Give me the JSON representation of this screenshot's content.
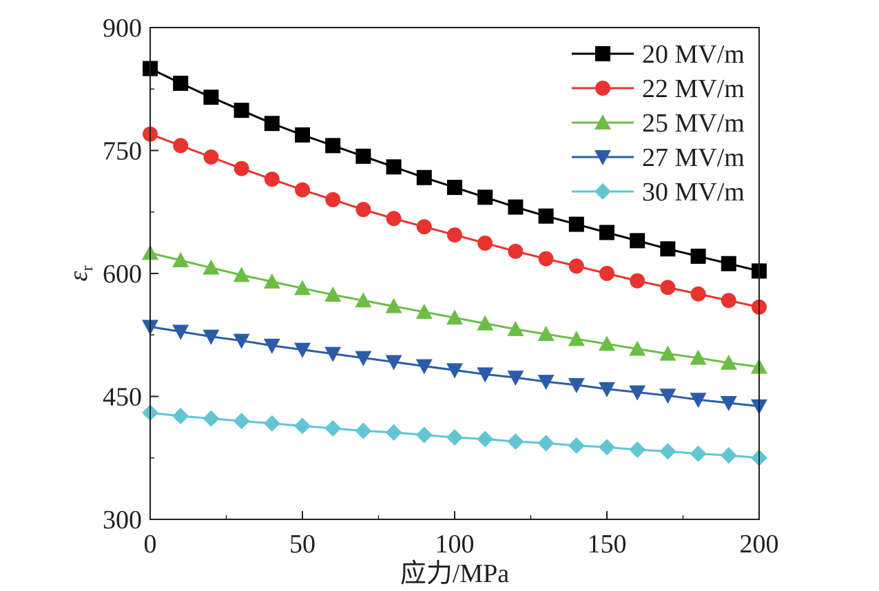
{
  "chart_data": {
    "type": "line",
    "title": "",
    "xlabel": "应力/MPa",
    "ylabel": "ε",
    "ylabel_subscript": "r",
    "xlim": [
      0,
      200
    ],
    "ylim": [
      300,
      900
    ],
    "xticks": [
      "0",
      "50",
      "100",
      "150",
      "200"
    ],
    "yticks": [
      "300",
      "450",
      "600",
      "750",
      "900"
    ],
    "legend_position": "top-right",
    "grid": false,
    "x": [
      0,
      10,
      20,
      30,
      40,
      50,
      60,
      70,
      80,
      90,
      100,
      110,
      120,
      130,
      140,
      150,
      160,
      170,
      180,
      190,
      200
    ],
    "series": [
      {
        "name": "20 MV/m",
        "color": "#000000",
        "marker": "square",
        "values": [
          850,
          832,
          815,
          799,
          783,
          769,
          756,
          743,
          730,
          717,
          705,
          693,
          681,
          670,
          660,
          650,
          640,
          630,
          621,
          612,
          603
        ]
      },
      {
        "name": "22 MV/m",
        "color": "#e8332f",
        "marker": "circle",
        "values": [
          770,
          756,
          742,
          728,
          715,
          702,
          690,
          678,
          667,
          657,
          647,
          637,
          627,
          618,
          609,
          600,
          591,
          583,
          575,
          567,
          559
        ]
      },
      {
        "name": "25 MV/m",
        "color": "#6cbd45",
        "marker": "triangle-up",
        "values": [
          625,
          616,
          607,
          598,
          590,
          582,
          574,
          567,
          560,
          553,
          546,
          539,
          532,
          526,
          520,
          514,
          508,
          502,
          497,
          491,
          486
        ]
      },
      {
        "name": "27 MV/m",
        "color": "#2b5ca8",
        "marker": "triangle-down",
        "values": [
          535,
          529,
          523,
          518,
          512,
          507,
          502,
          497,
          492,
          487,
          482,
          477,
          473,
          468,
          464,
          459,
          455,
          451,
          446,
          442,
          438
        ]
      },
      {
        "name": "30 MV/m",
        "color": "#62c5d3",
        "marker": "diamond",
        "values": [
          430,
          426,
          423,
          420,
          417,
          414,
          411,
          408,
          406,
          403,
          400,
          398,
          395,
          393,
          390,
          388,
          385,
          383,
          380,
          378,
          375
        ]
      }
    ]
  }
}
